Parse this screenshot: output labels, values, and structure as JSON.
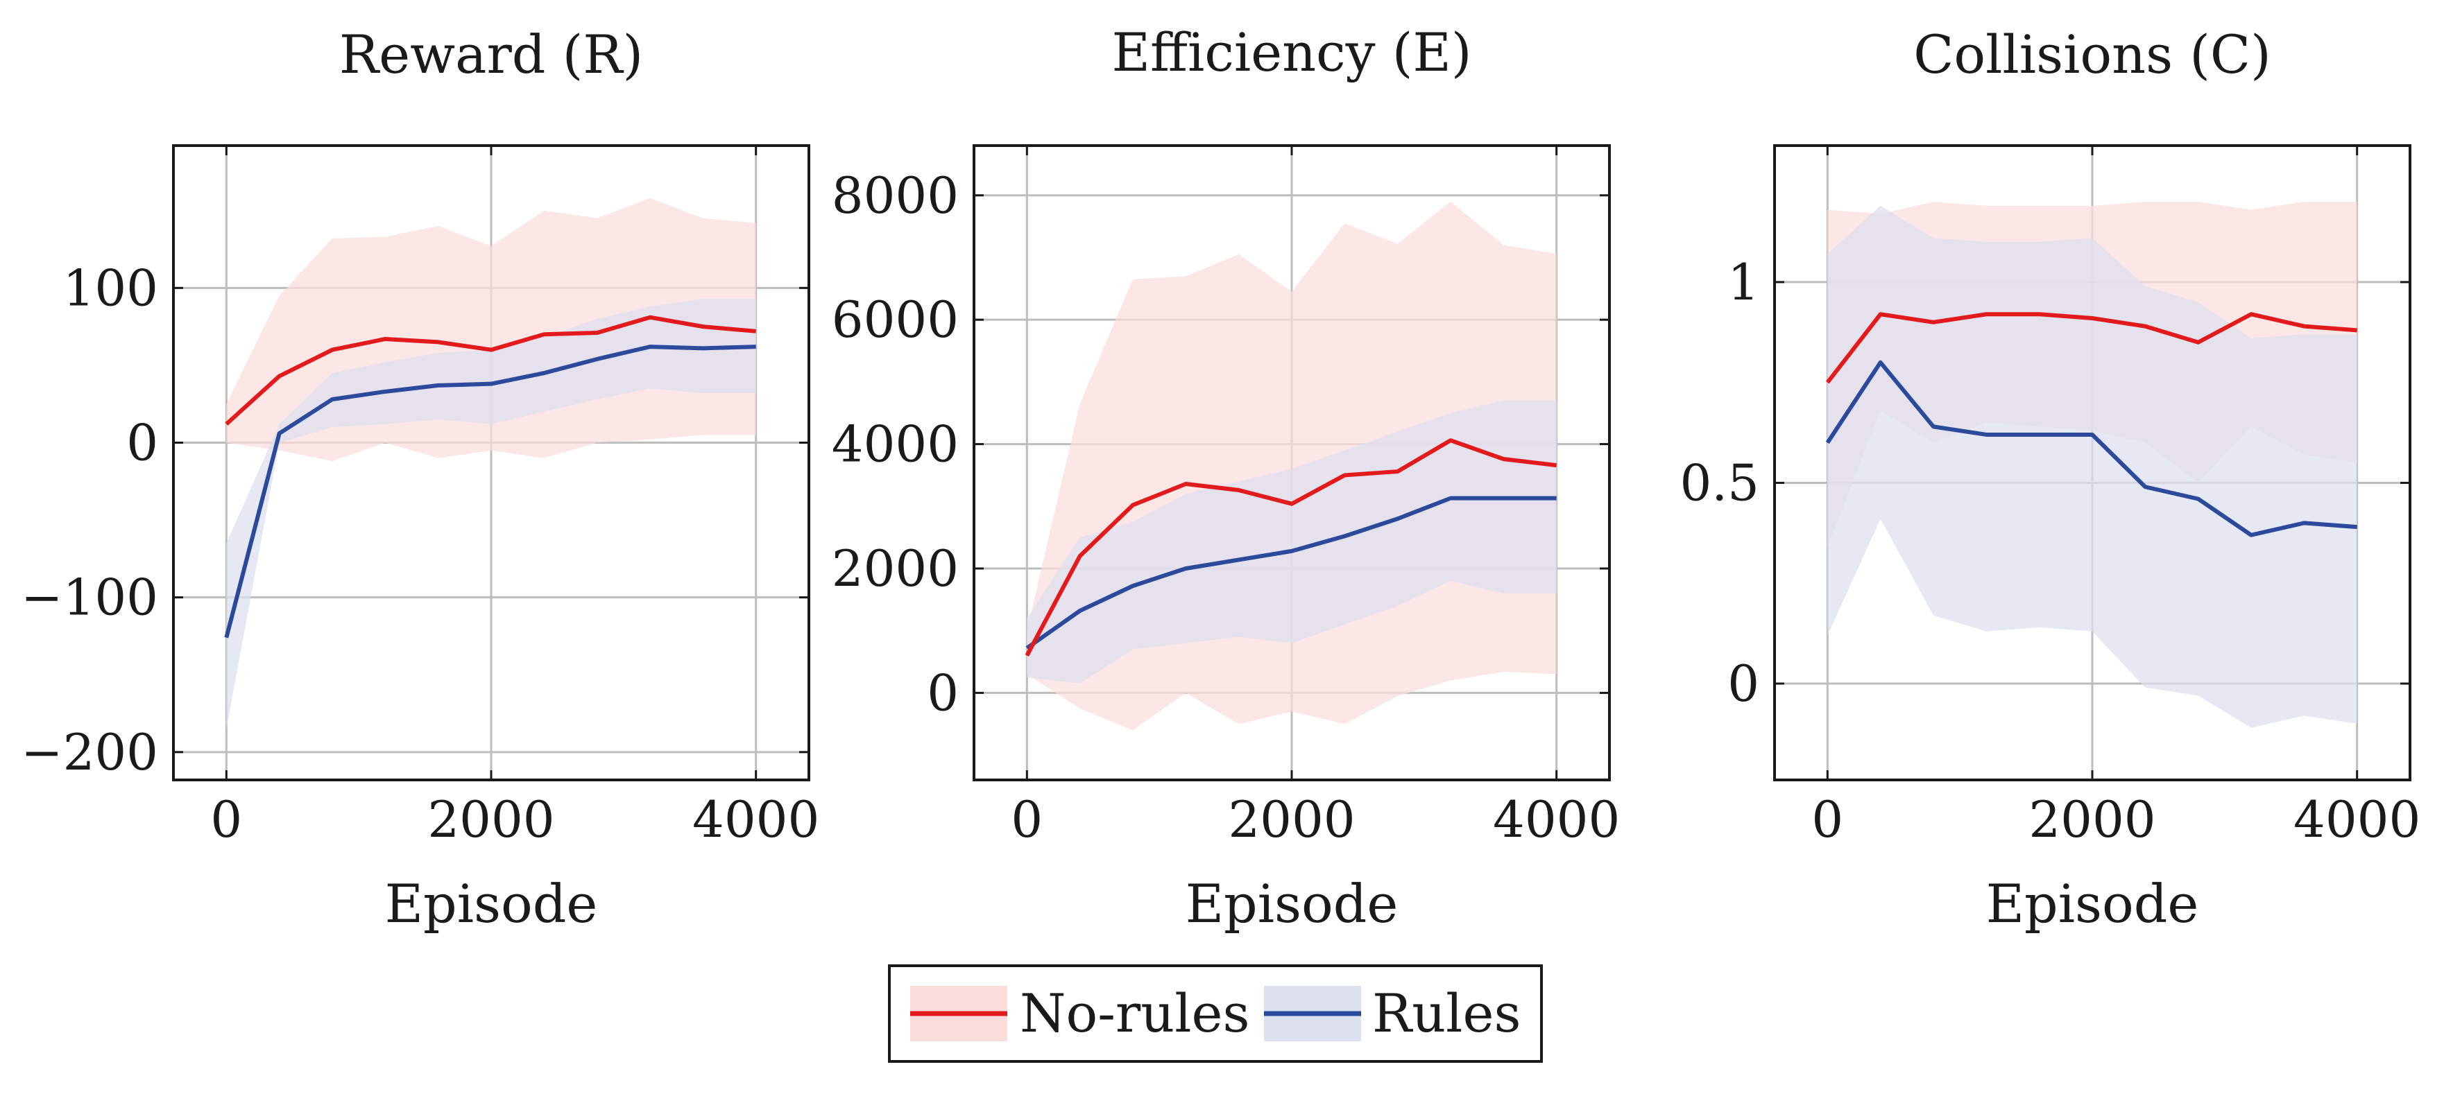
{
  "colors": {
    "no_rules_line": "#e31a1c",
    "no_rules_band": "#fbdcdc",
    "rules_line": "#2c4a9b",
    "rules_band": "#dde1f0",
    "grid": "#bdbdbd",
    "axis": "#1a1a1a"
  },
  "legend": {
    "items": [
      {
        "key": "no_rules",
        "label": "No-rules"
      },
      {
        "key": "rules",
        "label": "Rules"
      }
    ]
  },
  "chart_data": [
    {
      "type": "line",
      "title": "Reward (R)",
      "xlabel": "Episode",
      "ylabel": "",
      "xlim": [
        -400,
        4400
      ],
      "ylim": [
        -218,
        192
      ],
      "xticks": [
        0,
        2000,
        4000
      ],
      "xtick_labels": [
        "0",
        "2000",
        "4000"
      ],
      "yticks": [
        -200,
        -100,
        0,
        100
      ],
      "ytick_labels": [
        "−200",
        "−100",
        "0",
        "100"
      ],
      "grid": true,
      "x": [
        0,
        400,
        800,
        1200,
        1600,
        2000,
        2400,
        2800,
        3200,
        3600,
        4000
      ],
      "series": [
        {
          "name": "No-rules",
          "key": "no_rules",
          "values": [
            12,
            43,
            60,
            67,
            65,
            60,
            70,
            71,
            81,
            75,
            72
          ],
          "lower": [
            0,
            -5,
            -12,
            0,
            -10,
            -5,
            -10,
            0,
            2,
            5,
            5
          ],
          "upper": [
            25,
            95,
            132,
            133,
            140,
            127,
            150,
            145,
            158,
            145,
            142
          ]
        },
        {
          "name": "Rules",
          "key": "rules",
          "values": [
            -126,
            6,
            28,
            33,
            37,
            38,
            45,
            54,
            62,
            61,
            62
          ],
          "lower": [
            -185,
            0,
            10,
            12,
            15,
            12,
            20,
            28,
            35,
            32,
            32
          ],
          "upper": [
            -65,
            12,
            45,
            52,
            58,
            60,
            68,
            80,
            88,
            93,
            93
          ]
        }
      ]
    },
    {
      "type": "line",
      "title": "Efficiency (E)",
      "xlabel": "Episode",
      "ylabel": "",
      "xlim": [
        -400,
        4400
      ],
      "ylim": [
        -1400,
        8800
      ],
      "xticks": [
        0,
        2000,
        4000
      ],
      "xtick_labels": [
        "0",
        "2000",
        "4000"
      ],
      "yticks": [
        0,
        2000,
        4000,
        6000,
        8000
      ],
      "ytick_labels": [
        "0",
        "2000",
        "4000",
        "6000",
        "8000"
      ],
      "grid": true,
      "x": [
        0,
        400,
        800,
        1200,
        1600,
        2000,
        2400,
        2800,
        3200,
        3600,
        4000
      ],
      "series": [
        {
          "name": "No-rules",
          "key": "no_rules",
          "values": [
            600,
            2200,
            3020,
            3360,
            3260,
            3040,
            3500,
            3560,
            4060,
            3760,
            3660
          ],
          "lower": [
            300,
            -250,
            -600,
            0,
            -500,
            -300,
            -500,
            -50,
            200,
            340,
            300
          ],
          "upper": [
            1000,
            4650,
            6650,
            6700,
            7050,
            6450,
            7550,
            7220,
            7900,
            7200,
            7060
          ]
        },
        {
          "name": "Rules",
          "key": "rules",
          "values": [
            720,
            1320,
            1720,
            2000,
            2140,
            2280,
            2520,
            2800,
            3130,
            3130,
            3130
          ],
          "lower": [
            250,
            150,
            700,
            800,
            900,
            800,
            1100,
            1400,
            1800,
            1600,
            1600
          ],
          "upper": [
            1200,
            2500,
            2750,
            3200,
            3400,
            3600,
            3900,
            4200,
            4500,
            4700,
            4700
          ]
        }
      ]
    },
    {
      "type": "line",
      "title": "Collisions (C)",
      "xlabel": "Episode",
      "ylabel": "",
      "xlim": [
        -400,
        4400
      ],
      "ylim": [
        -0.24,
        1.34
      ],
      "xticks": [
        0,
        2000,
        4000
      ],
      "xtick_labels": [
        "0",
        "2000",
        "4000"
      ],
      "yticks": [
        0,
        0.5,
        1
      ],
      "ytick_labels": [
        "0",
        "0.5",
        "1"
      ],
      "grid": true,
      "x": [
        0,
        400,
        800,
        1200,
        1600,
        2000,
        2400,
        2800,
        3200,
        3600,
        4000
      ],
      "series": [
        {
          "name": "No-rules",
          "key": "no_rules",
          "values": [
            0.75,
            0.92,
            0.9,
            0.92,
            0.92,
            0.91,
            0.89,
            0.85,
            0.92,
            0.89,
            0.88
          ],
          "lower": [
            0.34,
            0.68,
            0.6,
            0.65,
            0.64,
            0.63,
            0.6,
            0.5,
            0.64,
            0.57,
            0.55
          ],
          "upper": [
            1.18,
            1.17,
            1.2,
            1.19,
            1.19,
            1.19,
            1.2,
            1.2,
            1.18,
            1.2,
            1.2
          ]
        },
        {
          "name": "Rules",
          "key": "rules",
          "values": [
            0.6,
            0.8,
            0.64,
            0.62,
            0.62,
            0.62,
            0.49,
            0.46,
            0.37,
            0.4,
            0.39
          ],
          "lower": [
            0.12,
            0.41,
            0.17,
            0.13,
            0.14,
            0.13,
            -0.01,
            -0.03,
            -0.11,
            -0.08,
            -0.1
          ],
          "upper": [
            1.07,
            1.19,
            1.11,
            1.1,
            1.1,
            1.11,
            0.99,
            0.95,
            0.86,
            0.87,
            0.87
          ]
        }
      ]
    }
  ]
}
